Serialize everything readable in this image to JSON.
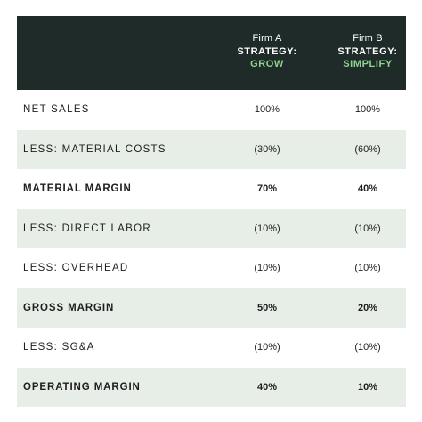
{
  "header": {
    "columns": [
      {
        "firm": "Firm A",
        "strategy_label": "STRATEGY:",
        "strategy_name": "GROW"
      },
      {
        "firm": "Firm B",
        "strategy_label": "STRATEGY:",
        "strategy_name": "SIMPLIFY"
      }
    ]
  },
  "colors": {
    "header_bg": "#1f2b28",
    "accent_green": "#8fd48f",
    "row_shade": "#e6eee7"
  },
  "rows": [
    {
      "label": "NET SALES",
      "firm_a": "100%",
      "firm_b": "100%",
      "bold": false,
      "shaded": false
    },
    {
      "label": "LESS: MATERIAL COSTS",
      "firm_a": "(30%)",
      "firm_b": "(60%)",
      "bold": false,
      "shaded": true
    },
    {
      "label": "MATERIAL MARGIN",
      "firm_a": "70%",
      "firm_b": "40%",
      "bold": true,
      "shaded": false
    },
    {
      "label": "LESS: DIRECT LABOR",
      "firm_a": "(10%)",
      "firm_b": "(10%)",
      "bold": false,
      "shaded": true
    },
    {
      "label": "LESS: OVERHEAD",
      "firm_a": "(10%)",
      "firm_b": "(10%)",
      "bold": false,
      "shaded": false
    },
    {
      "label": "GROSS MARGIN",
      "firm_a": "50%",
      "firm_b": "20%",
      "bold": true,
      "shaded": true
    },
    {
      "label": "LESS: SG&A",
      "firm_a": "(10%)",
      "firm_b": "(10%)",
      "bold": false,
      "shaded": false
    },
    {
      "label": "OPERATING MARGIN",
      "firm_a": "40%",
      "firm_b": "10%",
      "bold": true,
      "shaded": true
    }
  ]
}
